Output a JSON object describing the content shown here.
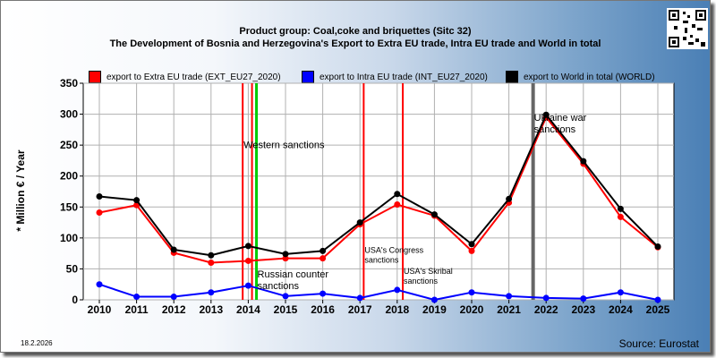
{
  "title": "Product group: Coal,coke and briquettes (Sitc 32)",
  "subtitle": "The Development of Bosnia and Herzegovina's Export to Extra EU trade, Intra EU trade and World in total",
  "ylabel": "* Million € / Year",
  "date": "18.2.2026",
  "source": "Source: Eurostat",
  "qr_icon": "qr-code-icon",
  "chart_data": {
    "type": "line",
    "x": [
      "2010",
      "2011",
      "2012",
      "2013",
      "2014",
      "2015",
      "2016",
      "2017",
      "2018",
      "2019",
      "2020",
      "2021",
      "2022",
      "2023",
      "2024",
      "2025"
    ],
    "ylim": [
      0,
      350
    ],
    "yticks": [
      0,
      50,
      100,
      150,
      200,
      250,
      300,
      350
    ],
    "grid": true,
    "legend_position": "top",
    "series": [
      {
        "name": "export to Extra EU trade (EXT_EU27_2020)",
        "color": "#ff0000",
        "values": [
          141,
          153,
          76,
          60,
          63,
          67,
          67,
          122,
          154,
          136,
          79,
          157,
          295,
          220,
          134,
          85
        ]
      },
      {
        "name": "export to Intra EU trade (INT_EU27_2020)",
        "color": "#0000ff",
        "values": [
          25,
          5,
          5,
          12,
          23,
          6,
          10,
          3,
          16,
          0,
          12,
          6,
          3,
          2,
          12,
          0
        ]
      },
      {
        "name": "export to World in total (WORLD)",
        "color": "#000000",
        "values": [
          167,
          161,
          81,
          72,
          87,
          74,
          79,
          125,
          171,
          138,
          90,
          163,
          299,
          224,
          147,
          86
        ]
      }
    ],
    "events": [
      {
        "x": 2013.85,
        "color": "#ff0000",
        "width": 2,
        "label": "Western sanctions",
        "label_y": 245,
        "label_size": 11
      },
      {
        "x": 2014.1,
        "color": "#ff0000",
        "width": 2,
        "label": "",
        "label_y": 0,
        "label_size": 11
      },
      {
        "x": 2014.22,
        "color": "#00cc00",
        "width": 3,
        "label": "Russian counter sanctions",
        "label_y": 36,
        "label_size": 11
      },
      {
        "x": 2017.1,
        "color": "#ff0000",
        "width": 2,
        "label": "USA's Congress sanctions",
        "label_y": 76,
        "label_size": 9
      },
      {
        "x": 2018.15,
        "color": "#ff0000",
        "width": 2,
        "label": "USA's Skribal sanctions",
        "label_y": 42,
        "label_size": 9
      },
      {
        "x": 2021.65,
        "color": "#666666",
        "width": 4,
        "label": "Ukraine war sanctions",
        "label_y": 289,
        "label_size": 11
      }
    ]
  }
}
